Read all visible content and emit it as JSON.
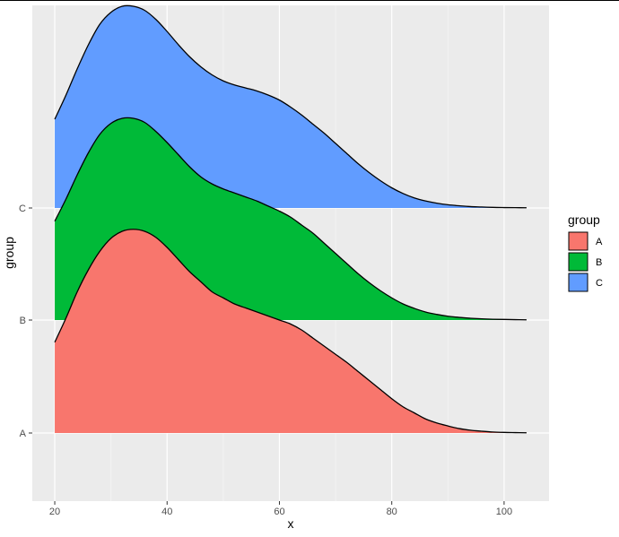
{
  "chart_data": {
    "type": "area",
    "subtype": "ridgeline-density",
    "title": "",
    "xlabel": "x",
    "ylabel": "group",
    "xlim": [
      16,
      108
    ],
    "x_ticks": [
      20,
      40,
      60,
      80,
      100
    ],
    "categories": [
      "A",
      "B",
      "C"
    ],
    "grid": true,
    "panel_background": "#EBEBEB",
    "legend": {
      "title": "group",
      "placement": "right",
      "entries": [
        {
          "label": "A",
          "color": "#F8766D"
        },
        {
          "label": "B",
          "color": "#00BA38"
        },
        {
          "label": "C",
          "color": "#619CFF"
        }
      ]
    },
    "series": [
      {
        "name": "A",
        "color": "#F8766D",
        "x": [
          20,
          22,
          24,
          26,
          28,
          30,
          32,
          34,
          36,
          38,
          40,
          42,
          44,
          46,
          48,
          50,
          52,
          54,
          56,
          58,
          60,
          62,
          64,
          66,
          68,
          70,
          72,
          74,
          76,
          78,
          80,
          82,
          84,
          86,
          88,
          90,
          92,
          94,
          96,
          98,
          100,
          102,
          104
        ],
        "density": [
          0.45,
          0.57,
          0.7,
          0.81,
          0.9,
          0.965,
          1.0,
          1.01,
          1.0,
          0.97,
          0.92,
          0.86,
          0.8,
          0.75,
          0.7,
          0.67,
          0.64,
          0.62,
          0.6,
          0.58,
          0.56,
          0.54,
          0.51,
          0.47,
          0.43,
          0.39,
          0.35,
          0.305,
          0.26,
          0.215,
          0.17,
          0.13,
          0.1,
          0.07,
          0.05,
          0.035,
          0.022,
          0.014,
          0.009,
          0.005,
          0.003,
          0.002,
          0.001
        ]
      },
      {
        "name": "B",
        "color": "#00BA38",
        "x": [
          20,
          22,
          24,
          26,
          28,
          30,
          32,
          34,
          36,
          38,
          40,
          42,
          44,
          46,
          48,
          50,
          52,
          54,
          56,
          58,
          60,
          62,
          64,
          66,
          68,
          70,
          72,
          74,
          76,
          78,
          80,
          82,
          84,
          86,
          88,
          90,
          92,
          94,
          96,
          98,
          100,
          102,
          104
        ],
        "density": [
          0.49,
          0.6,
          0.72,
          0.83,
          0.92,
          0.975,
          1.0,
          1.0,
          0.98,
          0.935,
          0.88,
          0.82,
          0.76,
          0.71,
          0.675,
          0.65,
          0.63,
          0.61,
          0.59,
          0.565,
          0.54,
          0.51,
          0.47,
          0.43,
          0.38,
          0.33,
          0.28,
          0.23,
          0.185,
          0.145,
          0.11,
          0.08,
          0.058,
          0.04,
          0.028,
          0.019,
          0.013,
          0.009,
          0.006,
          0.004,
          0.003,
          0.002,
          0.001
        ]
      },
      {
        "name": "C",
        "color": "#619CFF",
        "x": [
          20,
          22,
          24,
          26,
          28,
          30,
          32,
          34,
          36,
          38,
          40,
          42,
          44,
          46,
          48,
          50,
          52,
          54,
          56,
          58,
          60,
          62,
          64,
          66,
          68,
          70,
          72,
          74,
          76,
          78,
          80,
          82,
          84,
          86,
          88,
          90,
          92,
          94,
          96,
          98,
          100,
          102,
          104
        ],
        "density": [
          0.44,
          0.56,
          0.69,
          0.81,
          0.91,
          0.97,
          1.0,
          1.0,
          0.98,
          0.935,
          0.875,
          0.81,
          0.75,
          0.7,
          0.66,
          0.63,
          0.61,
          0.595,
          0.58,
          0.56,
          0.535,
          0.5,
          0.46,
          0.415,
          0.37,
          0.32,
          0.27,
          0.22,
          0.175,
          0.135,
          0.1,
          0.072,
          0.05,
          0.035,
          0.024,
          0.016,
          0.011,
          0.007,
          0.005,
          0.003,
          0.002,
          0.0015,
          0.001
        ]
      }
    ]
  }
}
